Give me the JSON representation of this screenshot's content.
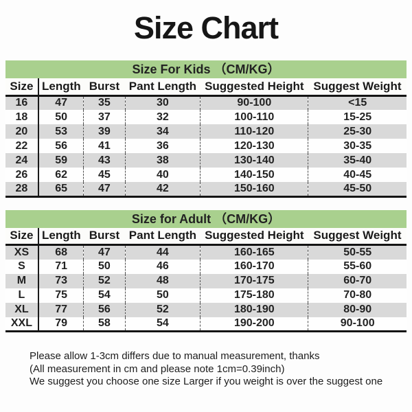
{
  "title": "Size Chart",
  "colors": {
    "banner_green": "#a9d08e",
    "row_gray": "#d9d9d9",
    "row_white": "#fefefe",
    "rule_black": "#141414"
  },
  "kids_table": {
    "banner": "Size For Kids （CM/KG）",
    "columns": [
      "Size",
      "Length",
      "Burst",
      "Pant Length",
      "Suggested Height",
      "Suggest Weight"
    ],
    "rows": [
      [
        "16",
        "47",
        "35",
        "30",
        "90-100",
        "<15"
      ],
      [
        "18",
        "50",
        "37",
        "32",
        "100-110",
        "15-25"
      ],
      [
        "20",
        "53",
        "39",
        "34",
        "110-120",
        "25-30"
      ],
      [
        "22",
        "56",
        "41",
        "36",
        "120-130",
        "30-35"
      ],
      [
        "24",
        "59",
        "43",
        "38",
        "130-140",
        "35-40"
      ],
      [
        "26",
        "62",
        "45",
        "40",
        "140-150",
        "40-45"
      ],
      [
        "28",
        "65",
        "47",
        "42",
        "150-160",
        "45-50"
      ]
    ]
  },
  "adult_table": {
    "banner": "Size for Adult （CM/KG）",
    "columns": [
      "Size",
      "Length",
      "Burst",
      "Pant Length",
      "Suggested Height",
      "Suggest Weight"
    ],
    "rows": [
      [
        "XS",
        "68",
        "47",
        "44",
        "160-165",
        "50-55"
      ],
      [
        "S",
        "71",
        "50",
        "46",
        "160-170",
        "55-60"
      ],
      [
        "M",
        "73",
        "52",
        "48",
        "170-175",
        "60-70"
      ],
      [
        "L",
        "75",
        "54",
        "50",
        "175-180",
        "70-80"
      ],
      [
        "XL",
        "77",
        "56",
        "52",
        "180-190",
        "80-90"
      ],
      [
        "XXL",
        "79",
        "58",
        "54",
        "190-200",
        "90-100"
      ]
    ]
  },
  "notes": [
    "Please allow 1-3cm differs due to manual measurement, thanks",
    "(All measurement in cm and please note 1cm=0.39inch)",
    "We suggest you choose one size Larger if you weight is over the suggest one"
  ]
}
